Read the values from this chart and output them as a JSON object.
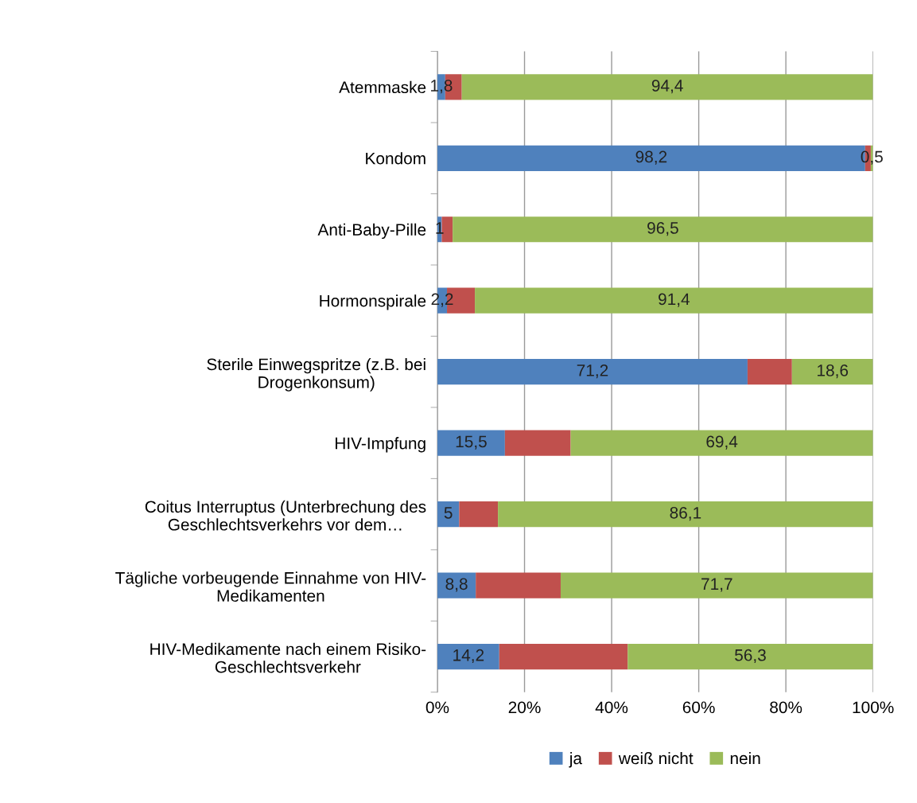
{
  "chart_data": {
    "type": "bar",
    "orientation": "horizontal",
    "stacked": true,
    "categories": [
      "Atemmaske",
      "Kondom",
      "Anti-Baby-Pille",
      "Hormonspirale",
      "Sterile Einwegspritze (z.B. bei\nDrogenkonsum)",
      "HIV-Impfung",
      "Coitus Interruptus (Unterbrechung des\nGeschlechtsverkehrs vor dem…",
      "Tägliche vorbeugende Einnahme von HIV-\nMedikamenten",
      "HIV-Medikamente nach einem Risiko-\nGeschlechtsverkehr"
    ],
    "series": [
      {
        "name": "ja",
        "color": "#4f81bd",
        "values": [
          1.8,
          98.2,
          1,
          2.2,
          71.2,
          15.5,
          5,
          8.8,
          14.2
        ],
        "value_labels": [
          "1,8",
          "98,2",
          "1",
          "2,2",
          "71,2",
          "15,5",
          "5",
          "8,8",
          "14,2"
        ]
      },
      {
        "name": "weiß nicht",
        "color": "#c0504d",
        "values": [
          3.8,
          1.3,
          2.5,
          6.4,
          10.2,
          15.1,
          8.9,
          19.5,
          29.5
        ]
      },
      {
        "name": "nein",
        "color": "#9bbb59",
        "values": [
          94.4,
          0.5,
          96.5,
          91.4,
          18.6,
          69.4,
          86.1,
          71.7,
          56.3
        ],
        "value_labels": [
          "94,4",
          "0,5",
          "96,5",
          "91,4",
          "18,6",
          "69,4",
          "86,1",
          "71,7",
          "56,3"
        ]
      }
    ],
    "xlim": [
      0,
      100
    ],
    "xticks": [
      {
        "value": 0,
        "label": "0%"
      },
      {
        "value": 20,
        "label": "20%"
      },
      {
        "value": 40,
        "label": "40%"
      },
      {
        "value": 60,
        "label": "60%"
      },
      {
        "value": 80,
        "label": "80%"
      },
      {
        "value": 100,
        "label": "100%"
      }
    ],
    "grid": "x",
    "legend": "bottom"
  }
}
